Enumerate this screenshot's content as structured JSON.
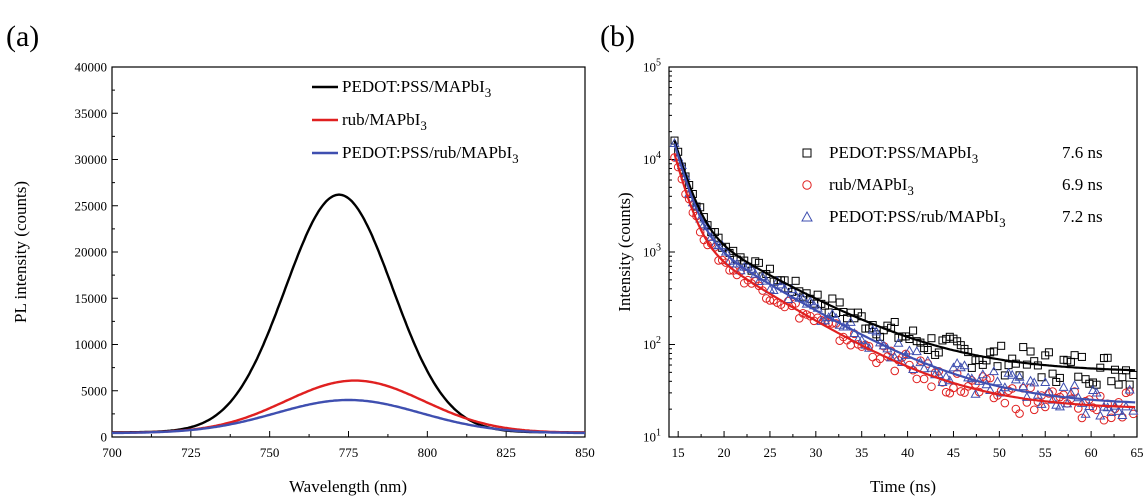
{
  "panels": [
    {
      "label": "(a)",
      "chart_data": {
        "type": "line",
        "xlabel": "Wavelength (nm)",
        "ylabel": "PL intensity (counts)",
        "xlim": [
          700,
          850
        ],
        "ylim": [
          0,
          40000
        ],
        "xticks": [
          700,
          725,
          750,
          775,
          800,
          825,
          850
        ],
        "yticks": [
          0,
          5000,
          10000,
          15000,
          20000,
          25000,
          30000,
          35000,
          40000
        ],
        "legend_position": "top-right",
        "series": [
          {
            "name_main": "PEDOT:PSS/MAPbI",
            "name_sub": "3",
            "color": "#000000",
            "peak_x": 772,
            "peak_y": 26200,
            "sigma": 17,
            "baseline": 500
          },
          {
            "name_main": "rub/MAPbI",
            "name_sub": "3",
            "color": "#e02020",
            "peak_x": 777,
            "peak_y": 6100,
            "sigma": 22,
            "baseline": 450
          },
          {
            "name_main": "PEDOT:PSS/rub/MAPbI",
            "name_sub": "3",
            "color": "#3f4fb0",
            "peak_x": 775,
            "peak_y": 4000,
            "sigma": 23,
            "baseline": 420
          }
        ]
      }
    },
    {
      "label": "(b)",
      "chart_data": {
        "type": "scatter",
        "xlabel": "Time (ns)",
        "ylabel": "Intensity (counts)",
        "xlim": [
          14,
          65
        ],
        "ylim": [
          10,
          100000
        ],
        "yscale": "log",
        "xticks": [
          15,
          20,
          25,
          30,
          35,
          40,
          45,
          50,
          55,
          60,
          65
        ],
        "yticks": [
          1,
          2,
          3,
          4,
          5
        ],
        "ytick_base": "10",
        "legend_position": "top-right",
        "series": [
          {
            "name_main": "PEDOT:PSS/MAPbI",
            "name_sub": "3",
            "lifetime": "7.6 ns",
            "marker": "square",
            "color": "#000000",
            "fit_color": "#000000",
            "fit": {
              "A1": 14000,
              "t1": 1.2,
              "A2": 2000,
              "t2": 7.6,
              "C": 50
            }
          },
          {
            "name_main": "rub/MAPbI",
            "name_sub": "3",
            "lifetime": "6.9 ns",
            "marker": "circle",
            "color": "#e02020",
            "fit_color": "#e02020",
            "fit": {
              "A1": 10000,
              "t1": 1.1,
              "A2": 1500,
              "t2": 6.9,
              "C": 20
            }
          },
          {
            "name_main": "PEDOT:PSS/rub/MAPbI",
            "name_sub": "3",
            "lifetime": "7.2 ns",
            "marker": "triangle",
            "color": "#3f4fb0",
            "fit_color": "#3f4fb0",
            "fit": {
              "A1": 13000,
              "t1": 1.15,
              "A2": 1800,
              "t2": 7.2,
              "C": 22
            }
          }
        ]
      }
    }
  ]
}
